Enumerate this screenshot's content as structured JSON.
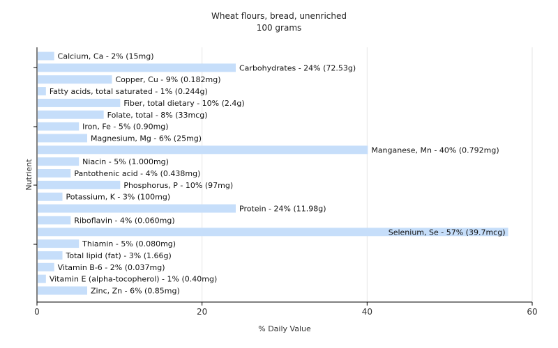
{
  "chart_data": {
    "type": "bar",
    "orientation": "horizontal",
    "title": "Wheat flours, bread, unenriched",
    "subtitle": "100 grams",
    "xlabel": "% Daily Value",
    "ylabel": "Nutrient",
    "xlim": [
      0,
      60
    ],
    "xticks": [
      0,
      20,
      40,
      60
    ],
    "grid": true,
    "bar_color": "#c6defa",
    "categories": [
      "Calcium, Ca",
      "Carbohydrates",
      "Copper, Cu",
      "Fatty acids, total saturated",
      "Fiber, total dietary",
      "Folate, total",
      "Iron, Fe",
      "Magnesium, Mg",
      "Manganese, Mn",
      "Niacin",
      "Pantothenic acid",
      "Phosphorus, P",
      "Potassium, K",
      "Protein",
      "Riboflavin",
      "Selenium, Se",
      "Thiamin",
      "Total lipid (fat)",
      "Vitamin B-6",
      "Vitamin E (alpha-tocopherol)",
      "Zinc, Zn"
    ],
    "values": [
      2,
      24,
      9,
      1,
      10,
      8,
      5,
      6,
      40,
      5,
      4,
      10,
      3,
      24,
      4,
      57,
      5,
      3,
      2,
      1,
      6
    ],
    "labels": [
      "Calcium, Ca - 2% (15mg)",
      "Carbohydrates - 24% (72.53g)",
      "Copper, Cu - 9% (0.182mg)",
      "Fatty acids, total saturated - 1% (0.244g)",
      "Fiber, total dietary - 10% (2.4g)",
      "Folate, total - 8% (33mcg)",
      "Iron, Fe - 5% (0.90mg)",
      "Magnesium, Mg - 6% (25mg)",
      "Manganese, Mn - 40% (0.792mg)",
      "Niacin - 5% (1.000mg)",
      "Pantothenic acid - 4% (0.438mg)",
      "Phosphorus, P - 10% (97mg)",
      "Potassium, K - 3% (100mg)",
      "Protein - 24% (11.98g)",
      "Riboflavin - 4% (0.060mg)",
      "Selenium, Se - 57% (39.7mcg)",
      "Thiamin - 5% (0.080mg)",
      "Total lipid (fat) - 3% (1.66g)",
      "Vitamin B-6 - 2% (0.037mg)",
      "Vitamin E (alpha-tocopherol) - 1% (0.40mg)",
      "Zinc, Zn - 6% (0.85mg)"
    ]
  }
}
